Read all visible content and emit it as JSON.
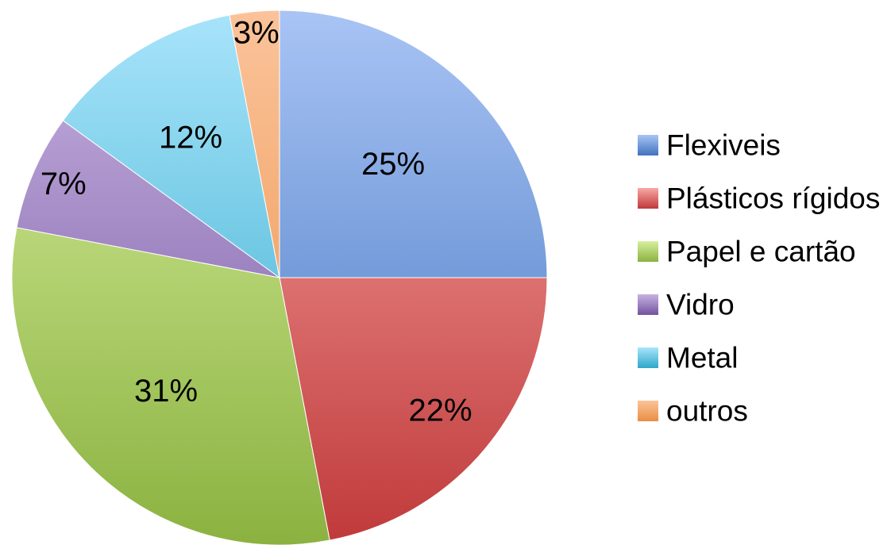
{
  "chart_data": {
    "type": "pie",
    "title": "",
    "start_angle_deg": 0,
    "direction": "clockwise",
    "legend_position": "right",
    "series": [
      {
        "categories": [
          "Flexiveis",
          "Plásticos rígidos",
          "Papel e cartão",
          "Vidro",
          "Metal",
          "outros"
        ],
        "values": [
          25,
          22,
          31,
          7,
          12,
          3
        ],
        "labels": [
          "25%",
          "22%",
          "31%",
          "7%",
          "12%",
          "3%"
        ],
        "colors": [
          {
            "light": "#a9c4f5",
            "dark": "#3f72bd"
          },
          {
            "light": "#f7a9a6",
            "dark": "#c0393a"
          },
          {
            "light": "#d8ef9f",
            "dark": "#8bb240"
          },
          {
            "light": "#c7b2e0",
            "dark": "#7253a0"
          },
          {
            "light": "#a8e4fb",
            "dark": "#2fa8c8"
          },
          {
            "light": "#fbc39a",
            "dark": "#ea8e43"
          }
        ]
      }
    ]
  }
}
